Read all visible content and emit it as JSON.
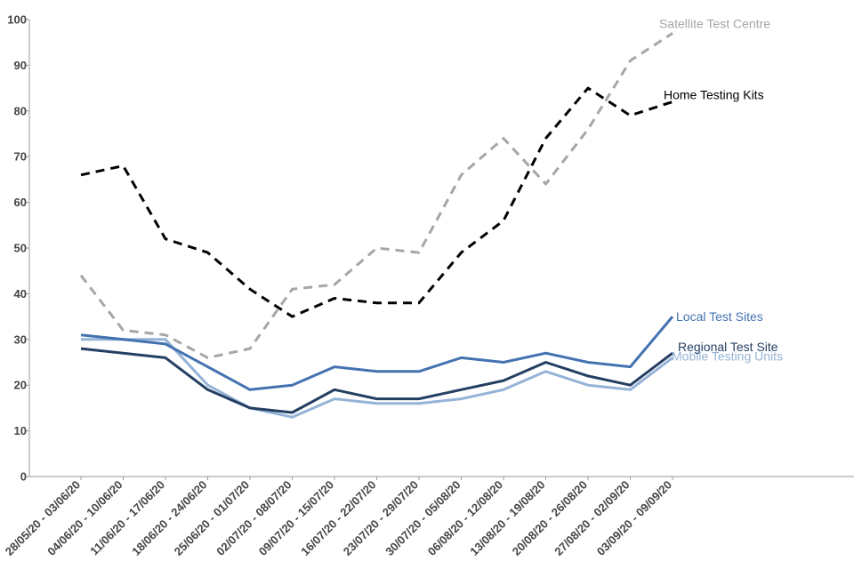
{
  "chart_data": {
    "type": "line",
    "ylim": [
      0,
      100
    ],
    "yticks": [
      0,
      10,
      20,
      30,
      40,
      50,
      60,
      70,
      80,
      90,
      100
    ],
    "grid": false,
    "categories": [
      "28/05/20 - 03/06/20",
      "04/06/20 - 10/06/20",
      "11/06/20 - 17/06/20",
      "18/06/20 - 24/06/20",
      "25/06/20 - 01/07/20",
      "02/07/20 - 08/07/20",
      "09/07/20 - 15/07/20",
      "16/07/20 - 22/07/20",
      "23/07/20 - 29/07/20",
      "30/07/20 - 05/08/20",
      "06/08/20 - 12/08/20",
      "13/08/20 - 19/08/20",
      "20/08/20 - 26/08/20",
      "27/08/20 - 02/09/20",
      "03/09/20 - 09/09/20"
    ],
    "series": [
      {
        "name": "Satellite Test Centre",
        "color": "#a6a6a6",
        "dash": "dashed",
        "values": [
          44,
          32,
          31,
          26,
          28,
          41,
          42,
          50,
          49,
          66,
          74,
          64,
          76,
          91,
          97
        ]
      },
      {
        "name": "Home Testing Kits",
        "color": "#000000",
        "dash": "dashed",
        "values": [
          66,
          68,
          52,
          49,
          41,
          35,
          39,
          38,
          38,
          49,
          56,
          74,
          85,
          79,
          82
        ]
      },
      {
        "name": "Local Test Sites",
        "color": "#4472b0",
        "dash": "solid",
        "values": [
          31,
          30,
          29,
          24,
          19,
          20,
          24,
          23,
          23,
          26,
          25,
          27,
          25,
          24,
          35
        ]
      },
      {
        "name": "Regional Test Site",
        "color": "#243f62",
        "dash": "solid",
        "values": [
          28,
          27,
          26,
          19,
          15,
          14,
          19,
          17,
          17,
          19,
          21,
          25,
          22,
          20,
          27
        ]
      },
      {
        "name": "Mobile Testing Units",
        "color": "#95b3d7",
        "dash": "solid",
        "values": [
          30,
          30,
          30,
          20,
          15,
          13,
          17,
          16,
          16,
          17,
          19,
          23,
          20,
          19,
          26
        ]
      }
    ]
  }
}
